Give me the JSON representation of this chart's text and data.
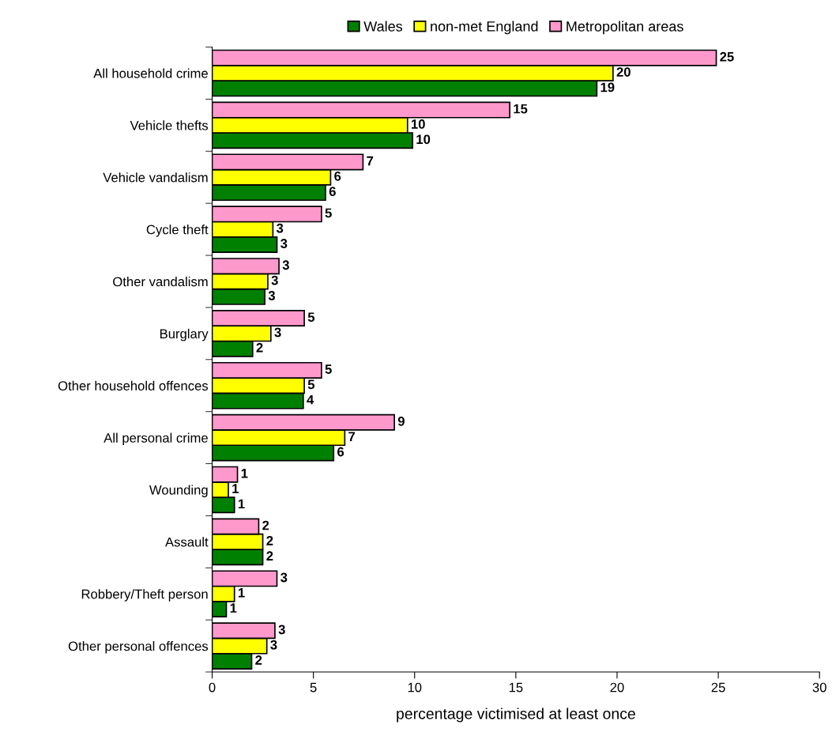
{
  "chart_data": {
    "type": "bar",
    "orientation": "horizontal",
    "xlabel": "percentage victimised at least once",
    "categories": [
      "All household crime",
      "Vehicle thefts",
      "Vehicle vandalism",
      "Cycle theft",
      "Other vandalism",
      "Burglary",
      "Other household offences",
      "All personal crime",
      "Wounding",
      "Assault",
      "Robbery/Theft person",
      "Other personal offences"
    ],
    "series": [
      {
        "name": "Wales",
        "color": "#008000",
        "values": [
          19.0,
          9.9,
          5.6,
          3.2,
          2.6,
          2.0,
          4.5,
          6.0,
          1.1,
          2.5,
          0.7,
          1.95
        ],
        "value_labels": [
          "19",
          "10",
          "6",
          "3",
          "3",
          "2",
          "4",
          "6",
          "1",
          "2",
          "1",
          "2"
        ]
      },
      {
        "name": "non-met England",
        "color": "#ffff00",
        "values": [
          19.8,
          9.65,
          5.85,
          3.0,
          2.75,
          2.9,
          4.55,
          6.55,
          0.8,
          2.5,
          1.1,
          2.7
        ],
        "value_labels": [
          "20",
          "10",
          "6",
          "3",
          "3",
          "3",
          "5",
          "7",
          "1",
          "2",
          "1",
          "3"
        ]
      },
      {
        "name": "Metropolitan areas",
        "color": "#ff99cc",
        "values": [
          24.9,
          14.7,
          7.45,
          5.4,
          3.3,
          4.55,
          5.4,
          9.0,
          1.25,
          2.3,
          3.2,
          3.1
        ],
        "value_labels": [
          "25",
          "15",
          "7",
          "5",
          "3",
          "5",
          "5",
          "9",
          "1",
          "2",
          "3",
          "3"
        ]
      }
    ],
    "xlim": [
      0,
      30
    ],
    "xticks": [
      0,
      5,
      10,
      15,
      20,
      25,
      30
    ],
    "grid": false,
    "legend": "top"
  }
}
